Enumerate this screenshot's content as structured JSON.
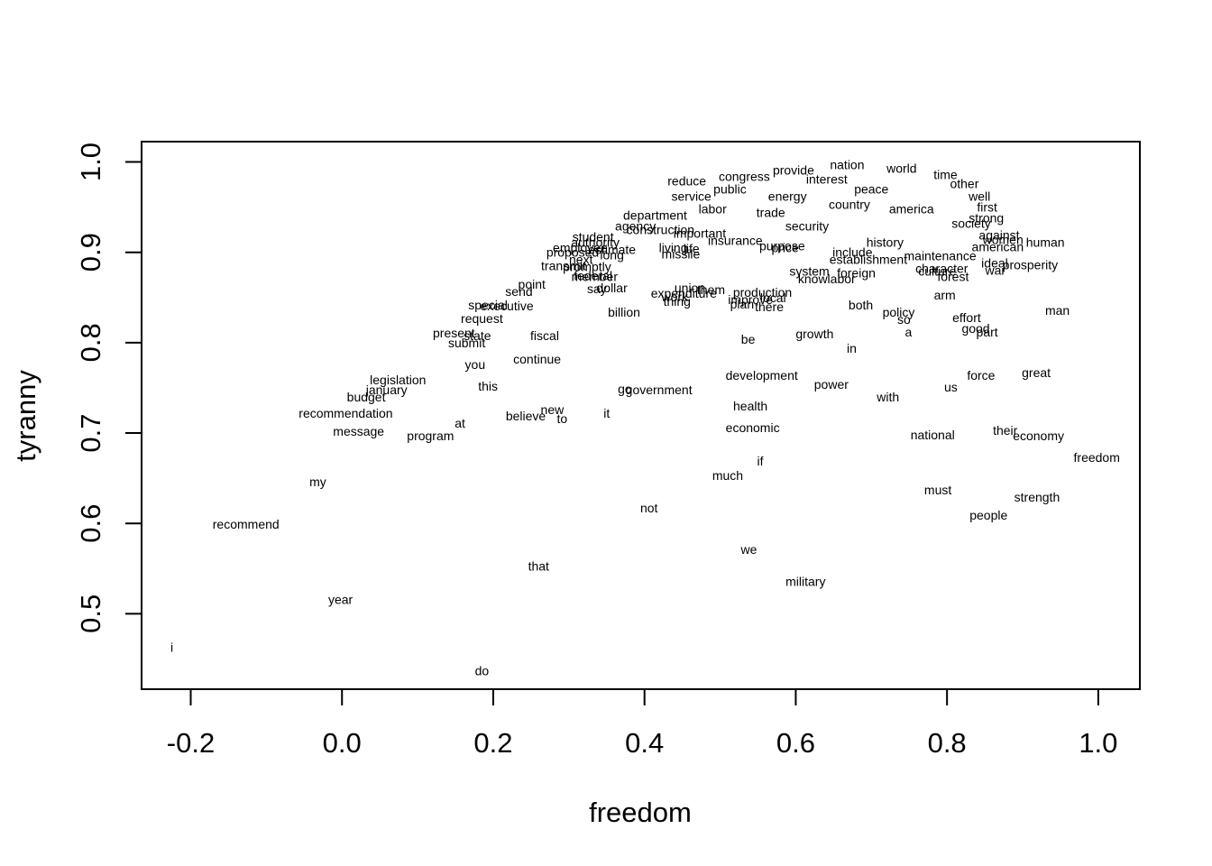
{
  "chart_data": {
    "type": "scatter",
    "title": "",
    "xlabel": "freedom",
    "ylabel": "tyranny",
    "xlim": [
      -0.265,
      1.055
    ],
    "ylim": [
      0.4165,
      1.0225
    ],
    "xticks": [
      "-0.2",
      "0.0",
      "0.2",
      "0.4",
      "0.6",
      "0.8",
      "1.0"
    ],
    "yticks": [
      "0.5",
      "0.6",
      "0.7",
      "0.8",
      "0.9",
      "1.0"
    ],
    "grid": false,
    "legend": "none",
    "points": [
      {
        "label": "i",
        "x": -0.225,
        "y": 0.463
      },
      {
        "label": "do",
        "x": 0.185,
        "y": 0.437
      },
      {
        "label": "year",
        "x": -0.002,
        "y": 0.516
      },
      {
        "label": "that",
        "x": 0.26,
        "y": 0.553
      },
      {
        "label": "military",
        "x": 0.613,
        "y": 0.536
      },
      {
        "label": "we",
        "x": 0.538,
        "y": 0.571
      },
      {
        "label": "recommend",
        "x": -0.127,
        "y": 0.599
      },
      {
        "label": "not",
        "x": 0.406,
        "y": 0.617
      },
      {
        "label": "people",
        "x": 0.855,
        "y": 0.609
      },
      {
        "label": "strength",
        "x": 0.919,
        "y": 0.629
      },
      {
        "label": "must",
        "x": 0.788,
        "y": 0.637
      },
      {
        "label": "my",
        "x": -0.032,
        "y": 0.646
      },
      {
        "label": "much",
        "x": 0.51,
        "y": 0.653
      },
      {
        "label": "if",
        "x": 0.553,
        "y": 0.669
      },
      {
        "label": "freedom",
        "x": 0.998,
        "y": 0.673
      },
      {
        "label": "national",
        "x": 0.781,
        "y": 0.698
      },
      {
        "label": "their",
        "x": 0.877,
        "y": 0.703
      },
      {
        "label": "economy",
        "x": 0.921,
        "y": 0.697
      },
      {
        "label": "message",
        "x": 0.022,
        "y": 0.702
      },
      {
        "label": "program",
        "x": 0.117,
        "y": 0.697
      },
      {
        "label": "economic",
        "x": 0.543,
        "y": 0.706
      },
      {
        "label": "at",
        "x": 0.156,
        "y": 0.711
      },
      {
        "label": "believe",
        "x": 0.243,
        "y": 0.719
      },
      {
        "label": "new",
        "x": 0.278,
        "y": 0.726
      },
      {
        "label": "to",
        "x": 0.291,
        "y": 0.716
      },
      {
        "label": "it",
        "x": 0.35,
        "y": 0.722
      },
      {
        "label": "recommendation",
        "x": 0.005,
        "y": 0.722
      },
      {
        "label": "health",
        "x": 0.54,
        "y": 0.73
      },
      {
        "label": "budget",
        "x": 0.032,
        "y": 0.74
      },
      {
        "label": "with",
        "x": 0.722,
        "y": 0.74
      },
      {
        "label": "january",
        "x": 0.059,
        "y": 0.748
      },
      {
        "label": "this",
        "x": 0.193,
        "y": 0.752
      },
      {
        "label": "go",
        "x": 0.374,
        "y": 0.749
      },
      {
        "label": "government",
        "x": 0.419,
        "y": 0.748
      },
      {
        "label": "us",
        "x": 0.805,
        "y": 0.751
      },
      {
        "label": "power",
        "x": 0.647,
        "y": 0.754
      },
      {
        "label": "legislation",
        "x": 0.074,
        "y": 0.759
      },
      {
        "label": "development",
        "x": 0.555,
        "y": 0.764
      },
      {
        "label": "force",
        "x": 0.845,
        "y": 0.764
      },
      {
        "label": "great",
        "x": 0.918,
        "y": 0.767
      },
      {
        "label": "you",
        "x": 0.176,
        "y": 0.776
      },
      {
        "label": "continue",
        "x": 0.258,
        "y": 0.782
      },
      {
        "label": "in",
        "x": 0.674,
        "y": 0.794
      },
      {
        "label": "be",
        "x": 0.537,
        "y": 0.804
      },
      {
        "label": "submit",
        "x": 0.165,
        "y": 0.8
      },
      {
        "label": "state",
        "x": 0.179,
        "y": 0.808
      },
      {
        "label": "fiscal",
        "x": 0.268,
        "y": 0.808
      },
      {
        "label": "growth",
        "x": 0.625,
        "y": 0.81
      },
      {
        "label": "present",
        "x": 0.148,
        "y": 0.811
      },
      {
        "label": "a",
        "x": 0.749,
        "y": 0.812
      },
      {
        "label": "good",
        "x": 0.838,
        "y": 0.816
      },
      {
        "label": "part",
        "x": 0.853,
        "y": 0.812
      },
      {
        "label": "so",
        "x": 0.743,
        "y": 0.826
      },
      {
        "label": "effort",
        "x": 0.826,
        "y": 0.828
      },
      {
        "label": "request",
        "x": 0.185,
        "y": 0.827
      },
      {
        "label": "billion",
        "x": 0.373,
        "y": 0.834
      },
      {
        "label": "policy",
        "x": 0.736,
        "y": 0.834
      },
      {
        "label": "man",
        "x": 0.946,
        "y": 0.836
      },
      {
        "label": "special",
        "x": 0.193,
        "y": 0.842
      },
      {
        "label": "executive",
        "x": 0.218,
        "y": 0.841
      },
      {
        "label": "both",
        "x": 0.686,
        "y": 0.842
      },
      {
        "label": "there",
        "x": 0.565,
        "y": 0.84
      },
      {
        "label": "plan",
        "x": 0.529,
        "y": 0.843
      },
      {
        "label": "thing",
        "x": 0.443,
        "y": 0.846
      },
      {
        "label": "improve",
        "x": 0.54,
        "y": 0.848
      },
      {
        "label": "local",
        "x": 0.57,
        "y": 0.85
      },
      {
        "label": "work",
        "x": 0.44,
        "y": 0.851
      },
      {
        "label": "expenditure",
        "x": 0.452,
        "y": 0.855
      },
      {
        "label": "production",
        "x": 0.556,
        "y": 0.856
      },
      {
        "label": "arm",
        "x": 0.797,
        "y": 0.853
      },
      {
        "label": "send",
        "x": 0.234,
        "y": 0.857
      },
      {
        "label": "say",
        "x": 0.337,
        "y": 0.86
      },
      {
        "label": "dollar",
        "x": 0.357,
        "y": 0.861
      },
      {
        "label": "union",
        "x": 0.46,
        "y": 0.861
      },
      {
        "label": "them",
        "x": 0.488,
        "y": 0.859
      },
      {
        "label": "point",
        "x": 0.251,
        "y": 0.865
      },
      {
        "label": "knowlabor",
        "x": 0.641,
        "y": 0.871
      },
      {
        "label": "forest",
        "x": 0.808,
        "y": 0.873
      },
      {
        "label": "federal",
        "x": 0.332,
        "y": 0.874
      },
      {
        "label": "member",
        "x": 0.334,
        "y": 0.873
      },
      {
        "label": "system",
        "x": 0.618,
        "y": 0.879
      },
      {
        "label": "foreign",
        "x": 0.68,
        "y": 0.877
      },
      {
        "label": "war",
        "x": 0.864,
        "y": 0.88
      },
      {
        "label": "culture",
        "x": 0.787,
        "y": 0.879
      },
      {
        "label": "transmit",
        "x": 0.293,
        "y": 0.885
      },
      {
        "label": "promptly",
        "x": 0.324,
        "y": 0.884
      },
      {
        "label": "character",
        "x": 0.793,
        "y": 0.882
      },
      {
        "label": "prosperity",
        "x": 0.91,
        "y": 0.886
      },
      {
        "label": "establishment",
        "x": 0.696,
        "y": 0.892
      },
      {
        "label": "maintenance",
        "x": 0.791,
        "y": 0.896
      },
      {
        "label": "ideal",
        "x": 0.863,
        "y": 0.888
      },
      {
        "label": "next",
        "x": 0.316,
        "y": 0.892
      },
      {
        "label": "missile",
        "x": 0.448,
        "y": 0.898
      },
      {
        "label": "include",
        "x": 0.675,
        "y": 0.9
      },
      {
        "label": "long",
        "x": 0.357,
        "y": 0.897
      },
      {
        "label": "proposed",
        "x": 0.305,
        "y": 0.9
      },
      {
        "label": "purpose",
        "x": 0.582,
        "y": 0.907
      },
      {
        "label": "price",
        "x": 0.586,
        "y": 0.905
      },
      {
        "label": "human",
        "x": 0.93,
        "y": 0.911
      },
      {
        "label": "insurance",
        "x": 0.52,
        "y": 0.913
      },
      {
        "label": "american",
        "x": 0.867,
        "y": 0.906
      },
      {
        "label": "women",
        "x": 0.874,
        "y": 0.914
      },
      {
        "label": "against",
        "x": 0.869,
        "y": 0.919
      },
      {
        "label": "society",
        "x": 0.832,
        "y": 0.932
      },
      {
        "label": "strong",
        "x": 0.852,
        "y": 0.938
      },
      {
        "label": "first",
        "x": 0.853,
        "y": 0.95
      },
      {
        "label": "well",
        "x": 0.843,
        "y": 0.962
      },
      {
        "label": "other",
        "x": 0.823,
        "y": 0.976
      },
      {
        "label": "time",
        "x": 0.798,
        "y": 0.986
      },
      {
        "label": "reduce",
        "x": 0.456,
        "y": 0.979
      },
      {
        "label": "service",
        "x": 0.462,
        "y": 0.962
      },
      {
        "label": "department",
        "x": 0.414,
        "y": 0.941
      },
      {
        "label": "agency",
        "x": 0.388,
        "y": 0.929
      },
      {
        "label": "student",
        "x": 0.332,
        "y": 0.917
      },
      {
        "label": "authority",
        "x": 0.335,
        "y": 0.911
      },
      {
        "label": "employee",
        "x": 0.315,
        "y": 0.905
      },
      {
        "label": "estimate",
        "x": 0.357,
        "y": 0.903
      },
      {
        "label": "living",
        "x": 0.438,
        "y": 0.905
      },
      {
        "label": "life",
        "x": 0.462,
        "y": 0.904
      },
      {
        "label": "construction",
        "x": 0.421,
        "y": 0.925
      },
      {
        "label": "important",
        "x": 0.473,
        "y": 0.921
      },
      {
        "label": "congress",
        "x": 0.532,
        "y": 0.984
      },
      {
        "label": "provide",
        "x": 0.597,
        "y": 0.991
      },
      {
        "label": "nation",
        "x": 0.668,
        "y": 0.997
      },
      {
        "label": "world",
        "x": 0.74,
        "y": 0.993
      },
      {
        "label": "peace",
        "x": 0.7,
        "y": 0.97
      },
      {
        "label": "america",
        "x": 0.753,
        "y": 0.948
      },
      {
        "label": "country",
        "x": 0.671,
        "y": 0.953
      },
      {
        "label": "history",
        "x": 0.718,
        "y": 0.911
      },
      {
        "label": "security",
        "x": 0.615,
        "y": 0.929
      },
      {
        "label": "trade",
        "x": 0.567,
        "y": 0.944
      },
      {
        "label": "energy",
        "x": 0.589,
        "y": 0.962
      },
      {
        "label": "labor",
        "x": 0.49,
        "y": 0.948
      },
      {
        "label": "public",
        "x": 0.513,
        "y": 0.97
      },
      {
        "label": "interest",
        "x": 0.641,
        "y": 0.981
      }
    ]
  }
}
